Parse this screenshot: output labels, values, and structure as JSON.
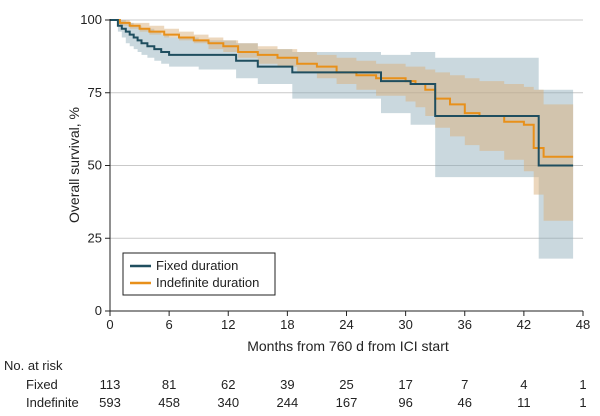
{
  "chart_data": {
    "type": "line",
    "subtype": "kaplan-meier",
    "xlabel": "Months from 760 d from ICI start",
    "ylabel": "Overall survival, %",
    "xlim": [
      0,
      48
    ],
    "ylim": [
      0,
      100
    ],
    "xticks": [
      0,
      6,
      12,
      18,
      24,
      30,
      36,
      42,
      48
    ],
    "yticks": [
      0,
      25,
      50,
      75,
      100
    ],
    "grid": "horizontal",
    "legend_position": "bottom-left",
    "series": [
      {
        "name": "Fixed duration",
        "color": "#1f4e5f",
        "band_color": "#8aa9b5",
        "x": [
          0,
          0.8,
          1.2,
          1.6,
          2.0,
          2.4,
          2.8,
          3.2,
          3.8,
          4.5,
          5.2,
          6.0,
          9.0,
          12.8,
          15.0,
          18.5,
          27.5,
          30.5,
          33.0,
          43.5,
          47.0
        ],
        "y": [
          100,
          98,
          97,
          96,
          95,
          94,
          93,
          92,
          91,
          90,
          89,
          88,
          88,
          86,
          84,
          82,
          79,
          78,
          67,
          50,
          50
        ],
        "lower": [
          100,
          96,
          94,
          92,
          91,
          90,
          89,
          88,
          87,
          86,
          85,
          84,
          83,
          80,
          78,
          73,
          68,
          64,
          46,
          18,
          18
        ],
        "upper": [
          100,
          100,
          100,
          99,
          99,
          98,
          98,
          97,
          97,
          96,
          95,
          94,
          93,
          92,
          90,
          89,
          88,
          89,
          87,
          76,
          76
        ]
      },
      {
        "name": "Indefinite duration",
        "color": "#e8901a",
        "band_color": "#d9b07c",
        "x": [
          0,
          1.0,
          2.0,
          3.0,
          4.0,
          5.5,
          7.0,
          8.5,
          10.0,
          11.5,
          13.0,
          15.0,
          17.0,
          19.0,
          21.0,
          23.0,
          25.0,
          27.0,
          30.0,
          31.0,
          32.0,
          33.0,
          34.5,
          36.0,
          37.5,
          40.0,
          42.0,
          43.0,
          44.0,
          47.0
        ],
        "y": [
          100,
          99,
          98,
          97,
          96,
          95,
          94,
          93,
          92,
          91,
          89,
          88,
          87,
          85,
          84,
          82,
          81,
          80,
          79,
          78,
          76,
          73,
          71,
          68,
          67,
          65,
          64,
          56,
          53,
          53
        ],
        "lower": [
          100,
          98,
          97,
          96,
          95,
          94,
          93,
          92,
          90,
          89,
          87,
          85,
          84,
          82,
          80,
          78,
          76,
          74,
          72,
          70,
          67,
          63,
          60,
          57,
          55,
          52,
          48,
          40,
          31,
          31
        ],
        "upper": [
          100,
          100,
          99,
          99,
          98,
          97,
          96,
          95,
          94,
          93,
          92,
          91,
          90,
          89,
          88,
          87,
          86,
          85,
          84,
          84,
          83,
          82,
          81,
          80,
          79,
          78,
          77,
          76,
          71,
          71
        ]
      }
    ],
    "risk_table": {
      "header": "No. at risk",
      "timepoints": [
        0,
        6,
        12,
        18,
        24,
        30,
        36,
        42,
        48
      ],
      "rows": [
        {
          "label": "Fixed",
          "values": [
            113,
            81,
            62,
            39,
            25,
            17,
            7,
            4,
            1
          ]
        },
        {
          "label": "Indefinite",
          "values": [
            593,
            458,
            340,
            244,
            167,
            96,
            46,
            11,
            1
          ]
        }
      ]
    }
  }
}
